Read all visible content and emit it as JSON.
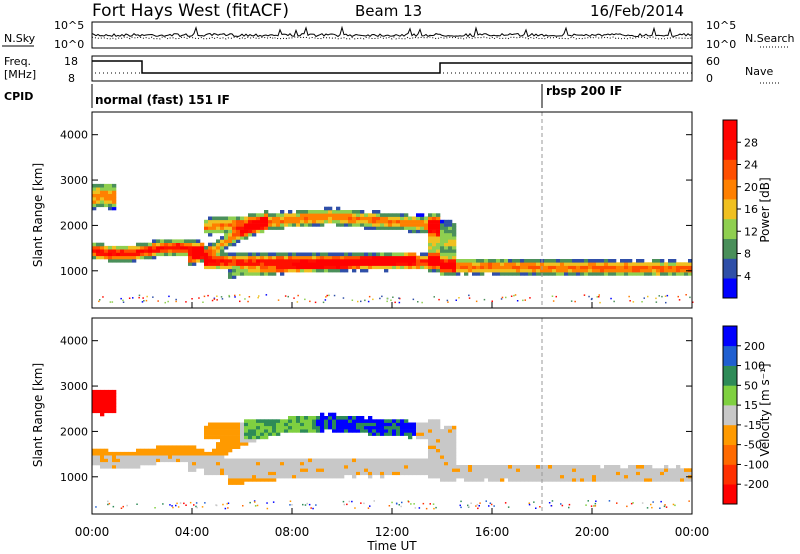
{
  "header": {
    "station": "Fort Hays West (fitACF)",
    "beam": "Beam 13",
    "date": "16/Feb/2014"
  },
  "nsky_panel": {
    "label": "N.Sky",
    "ticks": [
      "10^5",
      "10^0"
    ],
    "right_label": "N.Search",
    "right_ticks": [
      "10^5",
      "10^0"
    ]
  },
  "freq_panel": {
    "label_line1": "Freq.",
    "label_line2": "[MHz]",
    "ticks": [
      "18",
      "8"
    ],
    "right_label": "Nave",
    "right_ticks": [
      "60",
      "0"
    ]
  },
  "cpid_panel": {
    "label": "CPID",
    "modes": [
      {
        "name": "normal (fast) 151 IF",
        "start_hour": 0
      },
      {
        "name": "rbsp 200 IF",
        "start_hour": 18
      }
    ]
  },
  "x_axis": {
    "label": "Time UT",
    "ticks": [
      "00:00",
      "04:00",
      "08:00",
      "12:00",
      "16:00",
      "20:00",
      "00:00"
    ]
  },
  "chart_data": [
    {
      "type": "heatmap",
      "name": "power",
      "ylabel": "Slant Range [km]",
      "yticks": [
        "1000",
        "2000",
        "3000",
        "4000"
      ],
      "xlim": [
        0,
        24
      ],
      "ylim": [
        180,
        4500
      ],
      "colorbar": {
        "label": "Power [dB]",
        "ticks": [
          "4",
          "8",
          "12",
          "16",
          "20",
          "24",
          "28"
        ],
        "colors": [
          "#0000ff",
          "#2f4fa8",
          "#4a8f5a",
          "#8fcf50",
          "#f0c020",
          "#ff8000",
          "#ff5000",
          "#ff1000",
          "#ff0000"
        ]
      }
    },
    {
      "type": "heatmap",
      "name": "velocity",
      "ylabel": "Slant Range [km]",
      "yticks": [
        "1000",
        "2000",
        "3000",
        "4000"
      ],
      "xlim": [
        0,
        24
      ],
      "ylim": [
        180,
        4500
      ],
      "colorbar": {
        "label": "Velocity [m s⁻¹]",
        "ticks": [
          "200",
          "100",
          "50",
          "15",
          "-15",
          "-50",
          "-100",
          "-200"
        ],
        "colors": [
          "#0000ff",
          "#1f5fd0",
          "#2e8b57",
          "#7fd040",
          "#c8c8c8",
          "#ff9a00",
          "#ff6a00",
          "#ff3000",
          "#ff0000"
        ]
      }
    }
  ]
}
